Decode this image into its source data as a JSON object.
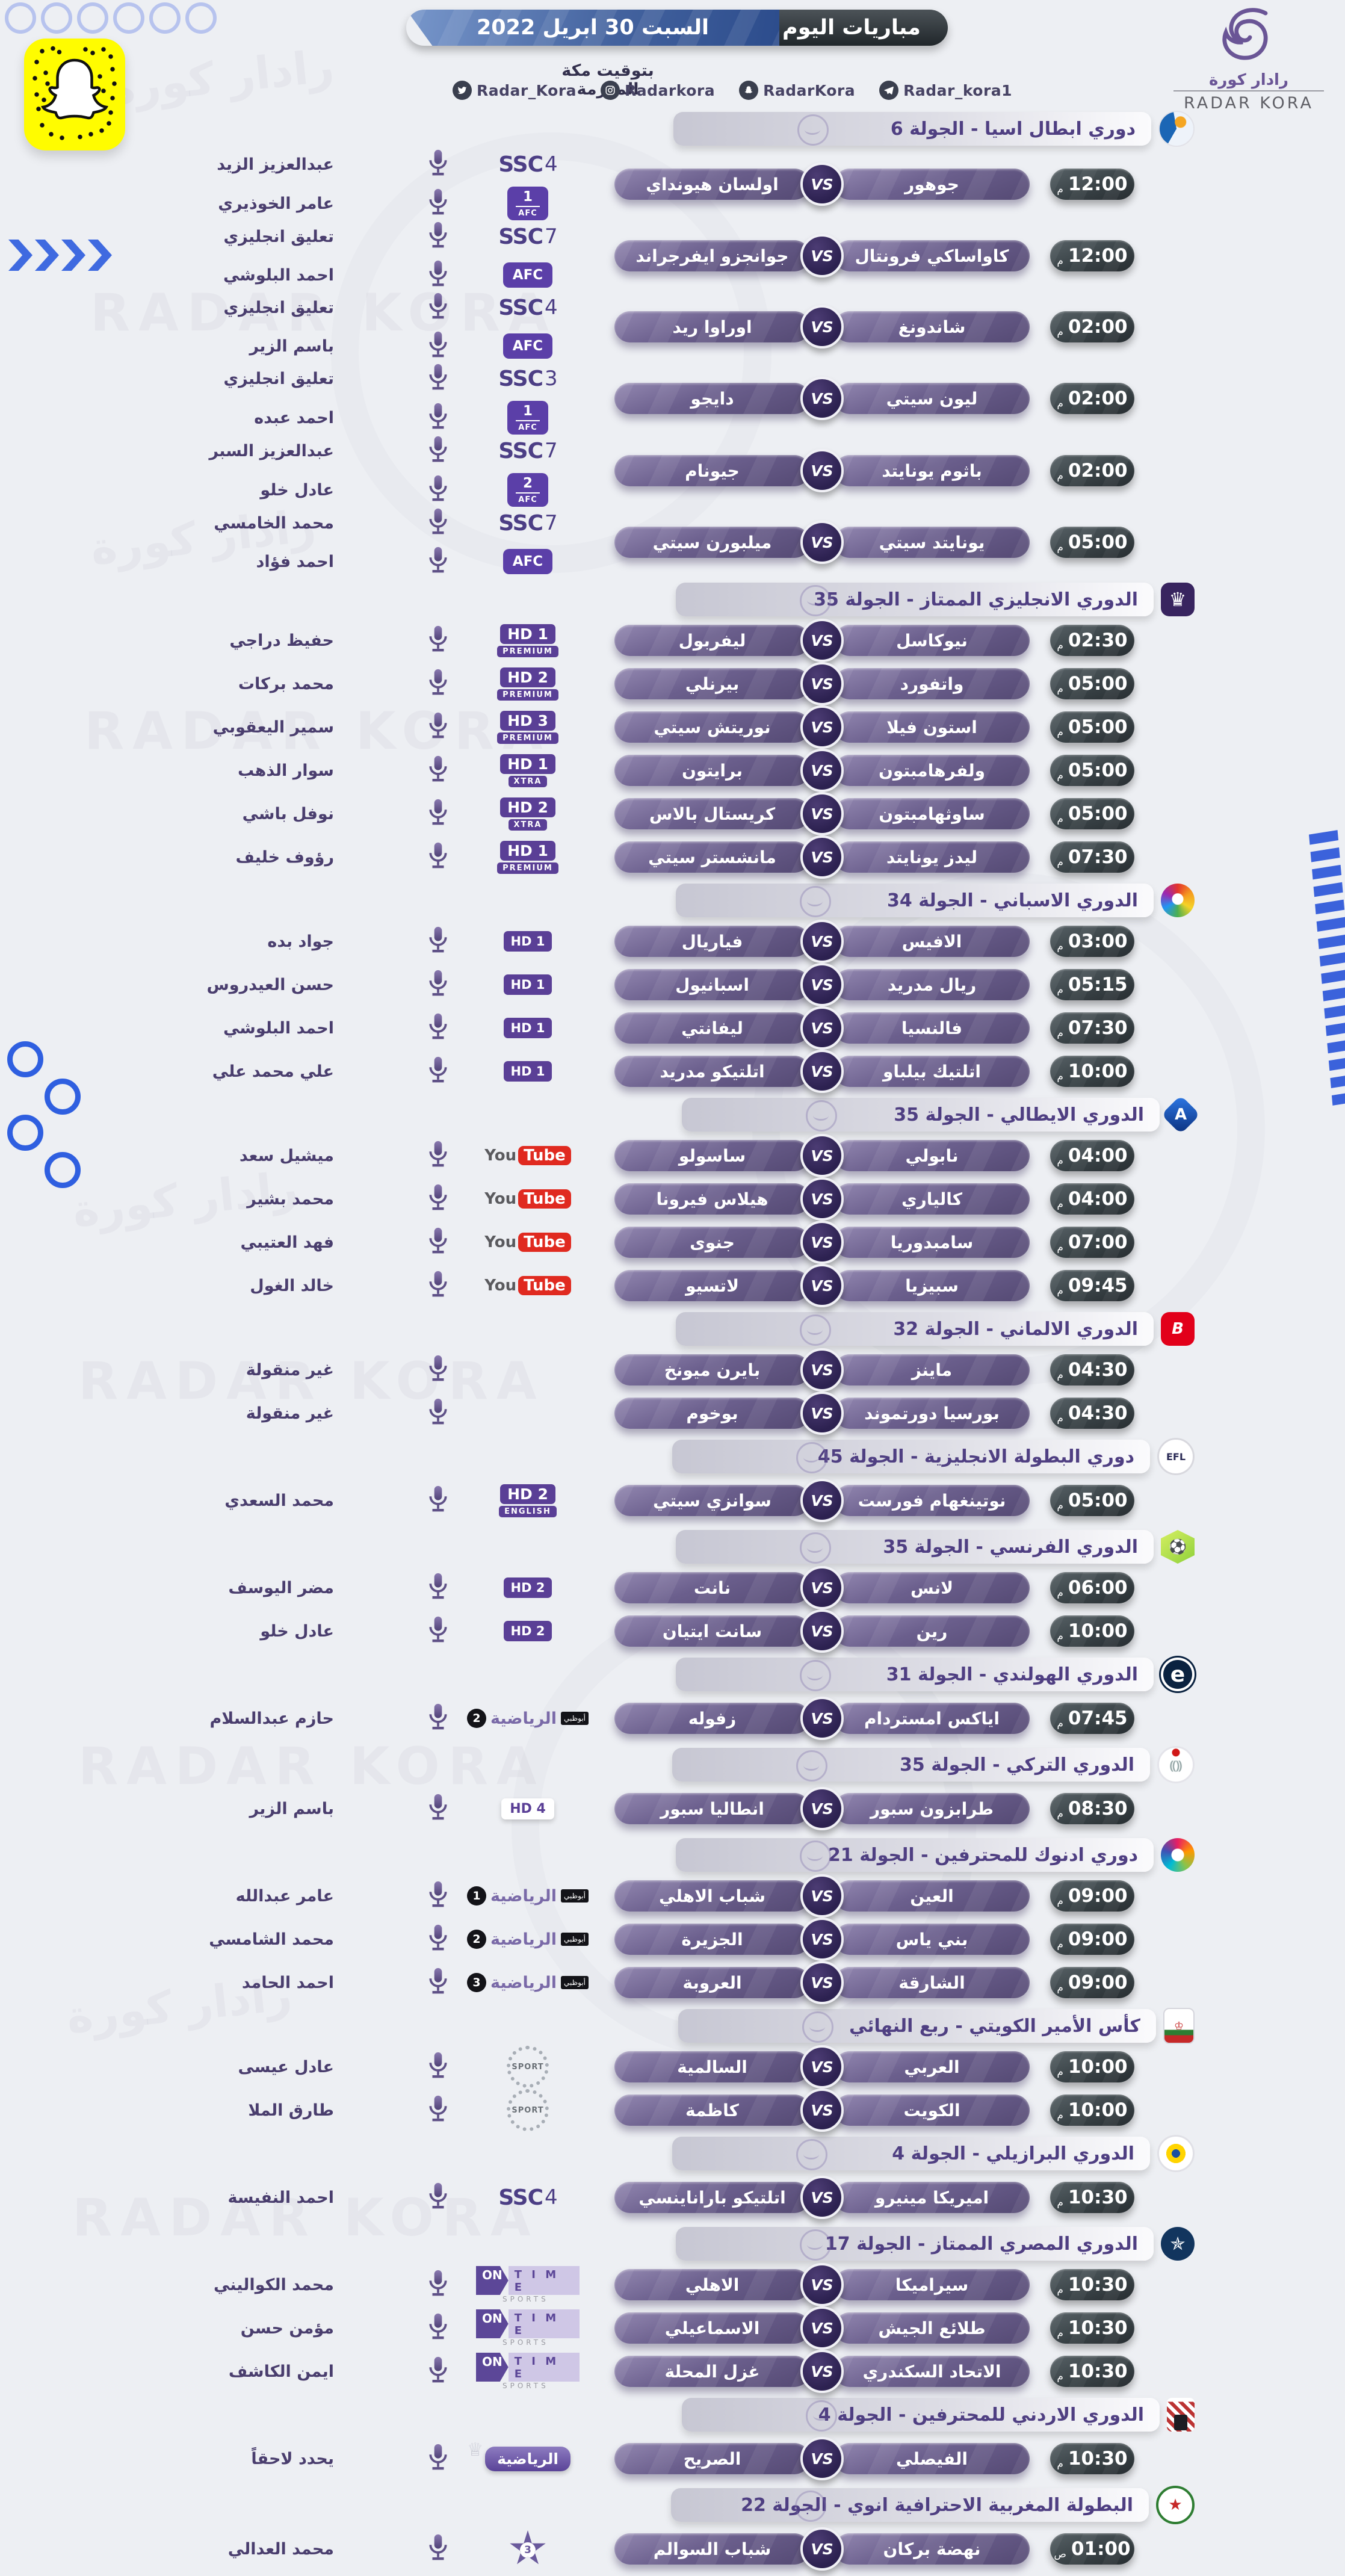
{
  "header": {
    "title": "مباريات اليوم",
    "date": "السبت 30 ابريل 2022",
    "timezone_note": "بتوقيت مكة المكرمة",
    "socials": [
      {
        "icon": "twitter-icon",
        "handle": "Radar_Kora"
      },
      {
        "icon": "instagram-icon",
        "handle": "Radarkora"
      },
      {
        "icon": "snapchat-icon",
        "handle": "RadarKora"
      },
      {
        "icon": "telegram-icon",
        "handle": "Radar_kora1"
      }
    ],
    "brand": {
      "name_ar": "رادار كورة",
      "name_en": "RADAR KORA"
    }
  },
  "vs_label": "VS",
  "decor": {
    "watermark_en": "RADAR KORA",
    "watermark_ar": "رادار كورة"
  },
  "accent_colors": {
    "pill_purple": "#5a4a7c",
    "time_dark": "#343c40",
    "badge_purple": "#5a3f96",
    "blue_decor": "#3f6ae0"
  },
  "sections": [
    {
      "league": "دوري ابطال اسيا - الجولة 6",
      "logo": "afc-cl",
      "matches": [
        {
          "time": "12:00",
          "suffix": "م",
          "home": "جوهور",
          "away": "اولسان هيونداي",
          "broadcasters": [
            {
              "badge": {
                "style": "ssc",
                "text": "SSC",
                "num": "4"
              },
              "commentator": "عبدالعزيز الزيد"
            },
            {
              "badge": {
                "style": "afc",
                "label": "AFC",
                "num": "1"
              },
              "commentator": "عامر الخوذيري"
            }
          ]
        },
        {
          "time": "12:00",
          "suffix": "م",
          "home": "كاواساكي فرونتال",
          "away": "جوانجزو ايفرجراند",
          "broadcasters": [
            {
              "badge": {
                "style": "ssc",
                "text": "SSC",
                "num": "7"
              },
              "commentator": "تعليق انجليزي"
            },
            {
              "badge": {
                "style": "afc",
                "label": "AFC",
                "num": ""
              },
              "commentator": "احمد البلوشي"
            }
          ]
        },
        {
          "time": "02:00",
          "suffix": "م",
          "home": "شاندونغ",
          "away": "اوراوا ريد",
          "broadcasters": [
            {
              "badge": {
                "style": "ssc",
                "text": "SSC",
                "num": "4"
              },
              "commentator": "تعليق انجليزي"
            },
            {
              "badge": {
                "style": "afc",
                "label": "AFC",
                "num": ""
              },
              "commentator": "باسم الزير"
            }
          ]
        },
        {
          "time": "02:00",
          "suffix": "م",
          "home": "ليون سيتي",
          "away": "دايجو",
          "broadcasters": [
            {
              "badge": {
                "style": "ssc",
                "text": "SSC",
                "num": "3"
              },
              "commentator": "تعليق انجليزي"
            },
            {
              "badge": {
                "style": "afc",
                "label": "AFC",
                "num": "1"
              },
              "commentator": "احمد عبده"
            }
          ]
        },
        {
          "time": "02:00",
          "suffix": "م",
          "home": "باثوم يونايتد",
          "away": "جيونام",
          "broadcasters": [
            {
              "badge": {
                "style": "ssc",
                "text": "SSC",
                "num": "7"
              },
              "commentator": "عبدالعزيز السبر"
            },
            {
              "badge": {
                "style": "afc",
                "label": "AFC",
                "num": "2"
              },
              "commentator": "عادل خلو"
            }
          ]
        },
        {
          "time": "05:00",
          "suffix": "م",
          "home": "يونايتد سيتي",
          "away": "ميلبورن سيتي",
          "broadcasters": [
            {
              "badge": {
                "style": "ssc",
                "text": "SSC",
                "num": "7"
              },
              "commentator": "محمد الخامسي"
            },
            {
              "badge": {
                "style": "afc",
                "label": "AFC",
                "num": ""
              },
              "commentator": "احمد فؤاد"
            }
          ]
        }
      ]
    },
    {
      "league": "الدوري الانجليزي الممتاز - الجولة 35",
      "logo": "premier-league",
      "matches": [
        {
          "time": "02:30",
          "suffix": "م",
          "home": "نيوكاسل",
          "away": "ليفربول",
          "broadcasters": [
            {
              "badge": {
                "style": "bein2",
                "line1": "HD 1",
                "line2": "PREMIUM"
              },
              "commentator": "حفيظ دراجي"
            }
          ]
        },
        {
          "time": "05:00",
          "suffix": "م",
          "home": "واتفورد",
          "away": "بيرنلي",
          "broadcasters": [
            {
              "badge": {
                "style": "bein2",
                "line1": "HD 2",
                "line2": "PREMIUM"
              },
              "commentator": "محمد بركات"
            }
          ]
        },
        {
          "time": "05:00",
          "suffix": "م",
          "home": "استون فيلا",
          "away": "نوريتش سيتي",
          "broadcasters": [
            {
              "badge": {
                "style": "bein2",
                "line1": "HD 3",
                "line2": "PREMIUM"
              },
              "commentator": "سمير اليعقوبي"
            }
          ]
        },
        {
          "time": "05:00",
          "suffix": "م",
          "home": "ولفرهامبتون",
          "away": "برايتون",
          "broadcasters": [
            {
              "badge": {
                "style": "bein2",
                "line1": "HD 1",
                "line2": "XTRA"
              },
              "commentator": "سوار الذهب"
            }
          ]
        },
        {
          "time": "05:00",
          "suffix": "م",
          "home": "ساوثهامبتون",
          "away": "كريستال بالاس",
          "broadcasters": [
            {
              "badge": {
                "style": "bein2",
                "line1": "HD 2",
                "line2": "XTRA"
              },
              "commentator": "نوفل باشي"
            }
          ]
        },
        {
          "time": "07:30",
          "suffix": "م",
          "home": "ليدز يونايتد",
          "away": "مانشستر سيتي",
          "broadcasters": [
            {
              "badge": {
                "style": "bein2",
                "line1": "HD 1",
                "line2": "PREMIUM"
              },
              "commentator": "رؤوف خليف"
            }
          ]
        }
      ]
    },
    {
      "league": "الدوري الاسباني - الجولة 34",
      "logo": "laliga",
      "matches": [
        {
          "time": "03:00",
          "suffix": "م",
          "home": "الافيس",
          "away": "فياريال",
          "broadcasters": [
            {
              "badge": {
                "style": "bein1",
                "label": "HD 1"
              },
              "commentator": "جواد بده"
            }
          ]
        },
        {
          "time": "05:15",
          "suffix": "م",
          "home": "ريال مدريد",
          "away": "اسبانيول",
          "broadcasters": [
            {
              "badge": {
                "style": "bein1",
                "label": "HD 1"
              },
              "commentator": "حسن العيدروس"
            }
          ]
        },
        {
          "time": "07:30",
          "suffix": "م",
          "home": "فالنسيا",
          "away": "ليفانتي",
          "broadcasters": [
            {
              "badge": {
                "style": "bein1",
                "label": "HD 1"
              },
              "commentator": "احمد البلوشي"
            }
          ]
        },
        {
          "time": "10:00",
          "suffix": "م",
          "home": "اتلتيك بيلباو",
          "away": "اتلتيكو مدريد",
          "broadcasters": [
            {
              "badge": {
                "style": "bein1",
                "label": "HD 1"
              },
              "commentator": "علي محمد علي"
            }
          ]
        }
      ]
    },
    {
      "league": "الدوري الايطالي - الجولة 35",
      "logo": "serie-a",
      "matches": [
        {
          "time": "04:00",
          "suffix": "م",
          "home": "نابولي",
          "away": "ساسولو",
          "broadcasters": [
            {
              "badge": {
                "style": "youtube",
                "part1": "You",
                "part2": "Tube"
              },
              "commentator": "ميشيل سعد"
            }
          ]
        },
        {
          "time": "04:00",
          "suffix": "م",
          "home": "كالياري",
          "away": "هيلاس فيرونا",
          "broadcasters": [
            {
              "badge": {
                "style": "youtube",
                "part1": "You",
                "part2": "Tube"
              },
              "commentator": "محمد بشير"
            }
          ]
        },
        {
          "time": "07:00",
          "suffix": "م",
          "home": "سامبدوريا",
          "away": "جنوى",
          "broadcasters": [
            {
              "badge": {
                "style": "youtube",
                "part1": "You",
                "part2": "Tube"
              },
              "commentator": "فهد العتيبي"
            }
          ]
        },
        {
          "time": "09:45",
          "suffix": "م",
          "home": "سبيزيا",
          "away": "لاتسيو",
          "broadcasters": [
            {
              "badge": {
                "style": "youtube",
                "part1": "You",
                "part2": "Tube"
              },
              "commentator": "خالد الغول"
            }
          ]
        }
      ]
    },
    {
      "league": "الدوري الالماني - الجولة 32",
      "logo": "bundesliga",
      "matches": [
        {
          "time": "04:30",
          "suffix": "م",
          "home": "ماينز",
          "away": "بايرن ميونخ",
          "broadcasters": [
            {
              "badge": {
                "style": "none"
              },
              "commentator": "غير منقولة"
            }
          ]
        },
        {
          "time": "04:30",
          "suffix": "م",
          "home": "بورسيا دورتموند",
          "away": "بوخوم",
          "broadcasters": [
            {
              "badge": {
                "style": "none"
              },
              "commentator": "غير منقولة"
            }
          ]
        }
      ]
    },
    {
      "league": "دوري البطولة الانجليزية - الجولة 45",
      "logo": "efl-championship",
      "matches": [
        {
          "time": "05:00",
          "suffix": "م",
          "home": "نوتينغهام فورست",
          "away": "سوانزي سيتي",
          "broadcasters": [
            {
              "badge": {
                "style": "bein2",
                "line1": "HD 2",
                "line2": "ENGLISH"
              },
              "commentator": "محمد السعدي"
            }
          ]
        }
      ]
    },
    {
      "league": "الدوري الفرنسي - الجولة 35",
      "logo": "ligue1",
      "matches": [
        {
          "time": "06:00",
          "suffix": "م",
          "home": "لانس",
          "away": "نانت",
          "broadcasters": [
            {
              "badge": {
                "style": "bein1",
                "label": "HD 2"
              },
              "commentator": "مضر اليوسف"
            }
          ]
        },
        {
          "time": "10:00",
          "suffix": "م",
          "home": "رين",
          "away": "سانت ايتيان",
          "broadcasters": [
            {
              "badge": {
                "style": "bein1",
                "label": "HD 2"
              },
              "commentator": "عادل خلو"
            }
          ]
        }
      ]
    },
    {
      "league": "الدوري الهولندي - الجولة 31",
      "logo": "eredivisie",
      "matches": [
        {
          "time": "07:45",
          "suffix": "م",
          "home": "اياكس امستردام",
          "away": "زفوله",
          "broadcasters": [
            {
              "badge": {
                "style": "adsports",
                "city": "أبوظبي",
                "name": "الرياضية",
                "num": "2"
              },
              "commentator": "حازم عبدالسلام"
            }
          ]
        }
      ]
    },
    {
      "league": "الدوري التركي - الجولة 35",
      "logo": "super-lig",
      "matches": [
        {
          "time": "08:30",
          "suffix": "م",
          "home": "طرابزون سبور",
          "away": "انطاليا سبور",
          "broadcasters": [
            {
              "badge": {
                "style": "bein_white",
                "label": "HD 4"
              },
              "commentator": "باسم الزير"
            }
          ]
        }
      ]
    },
    {
      "league": "دوري ادنوك للمحترفين - الجولة 21",
      "logo": "adnoc",
      "matches": [
        {
          "time": "09:00",
          "suffix": "م",
          "home": "العين",
          "away": "شباب الاهلي",
          "broadcasters": [
            {
              "badge": {
                "style": "adsports",
                "city": "أبوظبي",
                "name": "الرياضية",
                "num": "1"
              },
              "commentator": "عامر عبدالله"
            }
          ]
        },
        {
          "time": "09:00",
          "suffix": "م",
          "home": "بني ياس",
          "away": "الجزيرة",
          "broadcasters": [
            {
              "badge": {
                "style": "adsports",
                "city": "أبوظبي",
                "name": "الرياضية",
                "num": "2"
              },
              "commentator": "محمد الشامسي"
            }
          ]
        },
        {
          "time": "09:00",
          "suffix": "م",
          "home": "الشارقة",
          "away": "العروبة",
          "broadcasters": [
            {
              "badge": {
                "style": "adsports",
                "city": "أبوظبي",
                "name": "الرياضية",
                "num": "3"
              },
              "commentator": "احمد الحامد"
            }
          ]
        }
      ]
    },
    {
      "league": "كأس الأمير الكويتي - ربع النهائي",
      "logo": "kuwait-cup",
      "matches": [
        {
          "time": "10:00",
          "suffix": "م",
          "home": "العربي",
          "away": "السالمية",
          "broadcasters": [
            {
              "badge": {
                "style": "ktv",
                "label": "SPORT"
              },
              "commentator": "عادل عيسى"
            }
          ]
        },
        {
          "time": "10:00",
          "suffix": "م",
          "home": "الكويت",
          "away": "كاظمة",
          "broadcasters": [
            {
              "badge": {
                "style": "ktv",
                "label": "SPORT"
              },
              "commentator": "طارق الملا"
            }
          ]
        }
      ]
    },
    {
      "league": "الدوري البرازيلي - الجولة 4",
      "logo": "brasileirao",
      "matches": [
        {
          "time": "10:30",
          "suffix": "م",
          "home": "اميريكا مينيرو",
          "away": "اتلتيكو باراناينسي",
          "broadcasters": [
            {
              "badge": {
                "style": "ssc",
                "text": "SSC",
                "num": "4"
              },
              "commentator": "احمد النفيسة"
            }
          ]
        }
      ]
    },
    {
      "league": "الدوري المصري الممتاز - الجولة 17",
      "logo": "egypt-league",
      "matches": [
        {
          "time": "10:30",
          "suffix": "م",
          "home": "سيراميكا",
          "away": "الاهلي",
          "broadcasters": [
            {
              "badge": {
                "style": "ontime",
                "on": "ON",
                "time": "TIME",
                "sports": "SPORTS"
              },
              "commentator": "محمد الكواليني"
            }
          ]
        },
        {
          "time": "10:30",
          "suffix": "م",
          "home": "طلائع الجيش",
          "away": "الاسماعيلي",
          "broadcasters": [
            {
              "badge": {
                "style": "ontime",
                "on": "ON",
                "time": "TIME",
                "sports": "SPORTS"
              },
              "commentator": "مؤمن حسن"
            }
          ]
        },
        {
          "time": "10:30",
          "suffix": "م",
          "home": "الاتحاد السكندري",
          "away": "غزل المحلة",
          "broadcasters": [
            {
              "badge": {
                "style": "ontime",
                "on": "ON",
                "time": "TIME",
                "sports": "SPORTS"
              },
              "commentator": "ايمن الكاشف"
            }
          ]
        }
      ]
    },
    {
      "league": "الدوري الاردني للمحترفين - الجولة 4",
      "logo": "jordan-league",
      "matches": [
        {
          "time": "10:30",
          "suffix": "م",
          "home": "الفيصلي",
          "away": "الصريح",
          "broadcasters": [
            {
              "badge": {
                "style": "jordan",
                "label": "الرياضية"
              },
              "commentator": "يحدد لاحقاً"
            }
          ]
        }
      ]
    },
    {
      "league": "البطولة المغربية الاحترافية انوي - الجولة 22",
      "logo": "botola",
      "matches": [
        {
          "time": "01:00",
          "suffix": "ص",
          "home": "نهضة بركان",
          "away": "شباب السوالم",
          "broadcasters": [
            {
              "badge": {
                "style": "arryadia",
                "num": "3"
              },
              "commentator": "محمد العدالي"
            }
          ]
        }
      ]
    }
  ]
}
